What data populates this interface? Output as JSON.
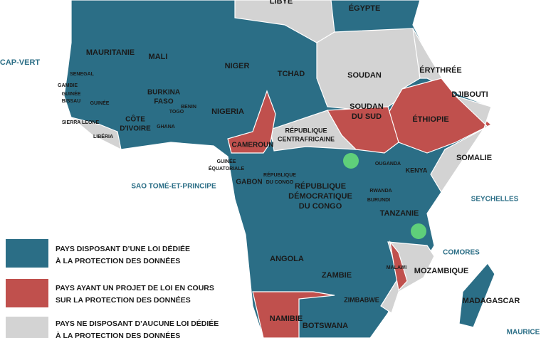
{
  "labels": [
    [
      "LIBYE"
    ],
    [
      "ÉGYPTE"
    ],
    [
      "CAP-VERT"
    ],
    [
      "MAURITANIE"
    ],
    [
      "MALI"
    ],
    [
      "NIGER"
    ],
    [
      "TCHAD"
    ],
    [
      "SOUDAN"
    ],
    [
      "ÉRYTHRÉE"
    ],
    [
      "SENEGAL"
    ],
    [
      "GAMBIE"
    ],
    [
      "GUINÉE",
      "BISSAU"
    ],
    [
      "GUINÉE"
    ],
    [
      "BURKINA",
      "FASO"
    ],
    [
      "BENIN"
    ],
    [
      "TOGO"
    ],
    [
      "DJIBOUTI"
    ],
    [
      "SOUDAN",
      "DU SUD"
    ],
    [
      "ÉTHIOPIE"
    ],
    [
      "NIGERIA"
    ],
    [
      "CÔTE",
      "D'IVOIRE"
    ],
    [
      "GHANA"
    ],
    [
      "SIERRA LEONE"
    ],
    [
      "LIBÉRIA"
    ],
    [
      "RÉPUBLIQUE",
      "CENTRAFRICAINE"
    ],
    [
      "CAMEROUN"
    ],
    [
      "SOMALIE"
    ],
    [
      "GUINÉE",
      "ÉQUATORIALE"
    ],
    [
      "OUGANDA"
    ],
    [
      "KENYA"
    ],
    [
      "RÉPUBLIQUE",
      "DU CONGO"
    ],
    [
      "GABON"
    ],
    [
      "SAO TOMÉ-ET-PRINCIPE"
    ],
    [
      "RÉPUBLIQUE",
      "DÉMOCRATIQUE",
      "DU CONGO"
    ],
    [
      "RWANDA"
    ],
    [
      "BURUNDI"
    ],
    [
      "SEYCHELLES"
    ],
    [
      "TANZANIE"
    ],
    [
      "COMORES"
    ],
    [
      "ANGOLA"
    ],
    [
      "MALAWI"
    ],
    [
      "MOZAMBIQUE"
    ],
    [
      "ZAMBIE"
    ],
    [
      "MADAGASCAR"
    ],
    [
      "ZIMBABWE"
    ],
    [
      "NAMIBIE"
    ],
    [
      "BOTSWANA"
    ],
    [
      "MAURICE"
    ]
  ],
  "legend": [
    [
      "PAYS DISPOSANT D’UNE LOI DÉDIÉE",
      "À LA PROTECTION DES DONNÉES"
    ],
    [
      "PAYS AYANT UN PROJET DE LOI EN COURS",
      "SUR LA PROTECTION DES DONNÉES"
    ],
    [
      "PAYS NE DISPOSANT D’AUCUNE LOI DÉDIÉE",
      "À LA PROTECTION DES DONNÉES"
    ]
  ]
}
